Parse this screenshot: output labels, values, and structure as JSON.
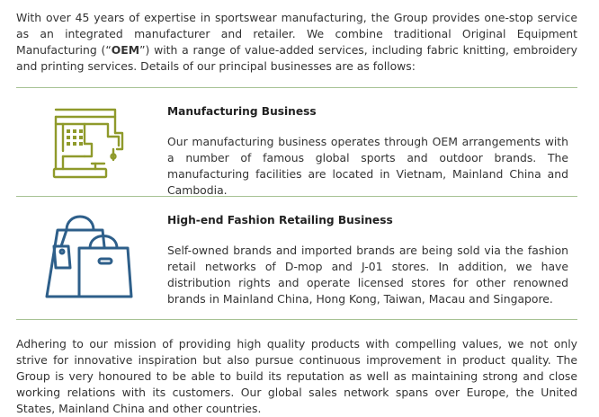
{
  "intro": {
    "text_before_bold": "With over 45 years of expertise in sportswear manufacturing, the Group provides one-stop service as an integrated manufacturer and retailer. We combine traditional Original Equipment Manufacturing (“",
    "bold": "OEM",
    "text_after_bold": "”) with a range of value-added services, including fabric knitting, embroidery and printing services. Details of our principal businesses are as follows:"
  },
  "businesses": [
    {
      "icon": "sewing-machine-icon",
      "title": "Manufacturing Business",
      "description": "Our manufacturing business operates through OEM arrangements with a number of famous global sports and outdoor brands. The manufacturing facilities are located in Vietnam, Mainland China and Cambodia."
    },
    {
      "icon": "shopping-bags-icon",
      "title": "High-end Fashion Retailing Business",
      "description": "Self-owned brands and imported brands are being sold via the fashion retail networks of D-mop and J-01 stores. In addition, we have distribution rights and operate licensed stores for other renowned brands in Mainland China, Hong Kong, Taiwan, Macau and Singapore."
    }
  ],
  "outro": {
    "text": "Adhering to our mission of providing high quality products with compelling values, we not only strive for innovative inspiration but also pursue continuous improvement in product quality. The Group is very honoured to be able to build its reputation as well as maintaining strong and close working relations with its customers. Our global sales network spans over Europe, the United States, Mainland China and other countries."
  },
  "colors": {
    "rule": "#a7c294",
    "machine_icon": "#8f9a2b",
    "bags_icon": "#2e5f8a",
    "text": "#333333"
  }
}
